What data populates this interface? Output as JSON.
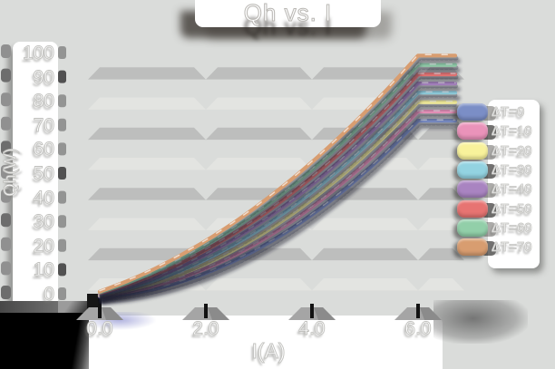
{
  "title": "Qh vs. I",
  "chart_data": {
    "type": "line",
    "title": "Qh vs. I",
    "xlabel": "I(A)",
    "ylabel": "Qh(W)",
    "x_ticks": [
      "0.0",
      "2.0",
      "4.0",
      "6.0"
    ],
    "x_tick_values": [
      0,
      2,
      4,
      6
    ],
    "y_ticks": [
      "0",
      "10",
      "20",
      "30",
      "40",
      "50",
      "60",
      "70",
      "80",
      "90",
      "100"
    ],
    "y_tick_values": [
      0,
      10,
      20,
      30,
      40,
      50,
      60,
      70,
      80,
      90,
      100
    ],
    "xlim": [
      0,
      6.9
    ],
    "ylim": [
      0,
      100
    ],
    "grid": "horizontal beveled bands",
    "legend_position": "right",
    "x": [
      0,
      0.5,
      1,
      1.5,
      2,
      2.5,
      3,
      3.5,
      4,
      4.5,
      5,
      5.5,
      6
    ],
    "series": [
      {
        "name": "ΔT=0",
        "color": "#7b8ec6",
        "values": [
          0.0,
          1.0,
          3.0,
          5.9,
          9.7,
          14.4,
          20.0,
          26.5,
          34.0,
          42.3,
          51.6,
          61.8,
          72.9
        ]
      },
      {
        "name": "ΔT=10",
        "color": "#ea93ba",
        "values": [
          0.3,
          1.8,
          4.2,
          7.4,
          11.6,
          16.6,
          22.6,
          29.4,
          37.1,
          45.7,
          55.1,
          65.5,
          76.7
        ]
      },
      {
        "name": "ΔT=20",
        "color": "#f8f29b",
        "values": [
          0.6,
          2.5,
          5.3,
          9.0,
          13.5,
          18.9,
          25.1,
          32.2,
          40.2,
          49.0,
          58.7,
          69.2,
          80.6
        ]
      },
      {
        "name": "ΔT=30",
        "color": "#93d3e1",
        "values": [
          0.9,
          3.3,
          6.5,
          10.5,
          15.4,
          21.2,
          27.7,
          35.1,
          43.3,
          52.4,
          62.2,
          73.0,
          84.5
        ]
      },
      {
        "name": "ΔT=40",
        "color": "#a984c1",
        "values": [
          1.1,
          4.0,
          7.6,
          12.1,
          17.4,
          23.4,
          30.3,
          37.9,
          46.4,
          55.7,
          65.8,
          76.7,
          88.3
        ]
      },
      {
        "name": "ΔT=50",
        "color": "#e77472",
        "values": [
          1.4,
          4.7,
          8.8,
          13.6,
          19.3,
          25.7,
          32.8,
          40.8,
          49.5,
          59.0,
          69.3,
          80.3,
          92.1
        ]
      },
      {
        "name": "ΔT=60",
        "color": "#92cfa9",
        "values": [
          1.7,
          5.5,
          9.9,
          15.2,
          21.2,
          27.9,
          35.4,
          43.6,
          52.6,
          62.3,
          72.8,
          84.0,
          96.0
        ]
      },
      {
        "name": "ΔT=70",
        "color": "#d89d70",
        "values": [
          2.0,
          6.2,
          11.1,
          16.8,
          23.1,
          30.2,
          38.0,
          46.5,
          55.7,
          65.7,
          76.4,
          87.8,
          99.9
        ]
      }
    ],
    "colors": {
      "background": "#dadcda",
      "band_dark": "#bdbebd",
      "band_light": "#e3e4e1",
      "panel": "#ffffff"
    }
  }
}
